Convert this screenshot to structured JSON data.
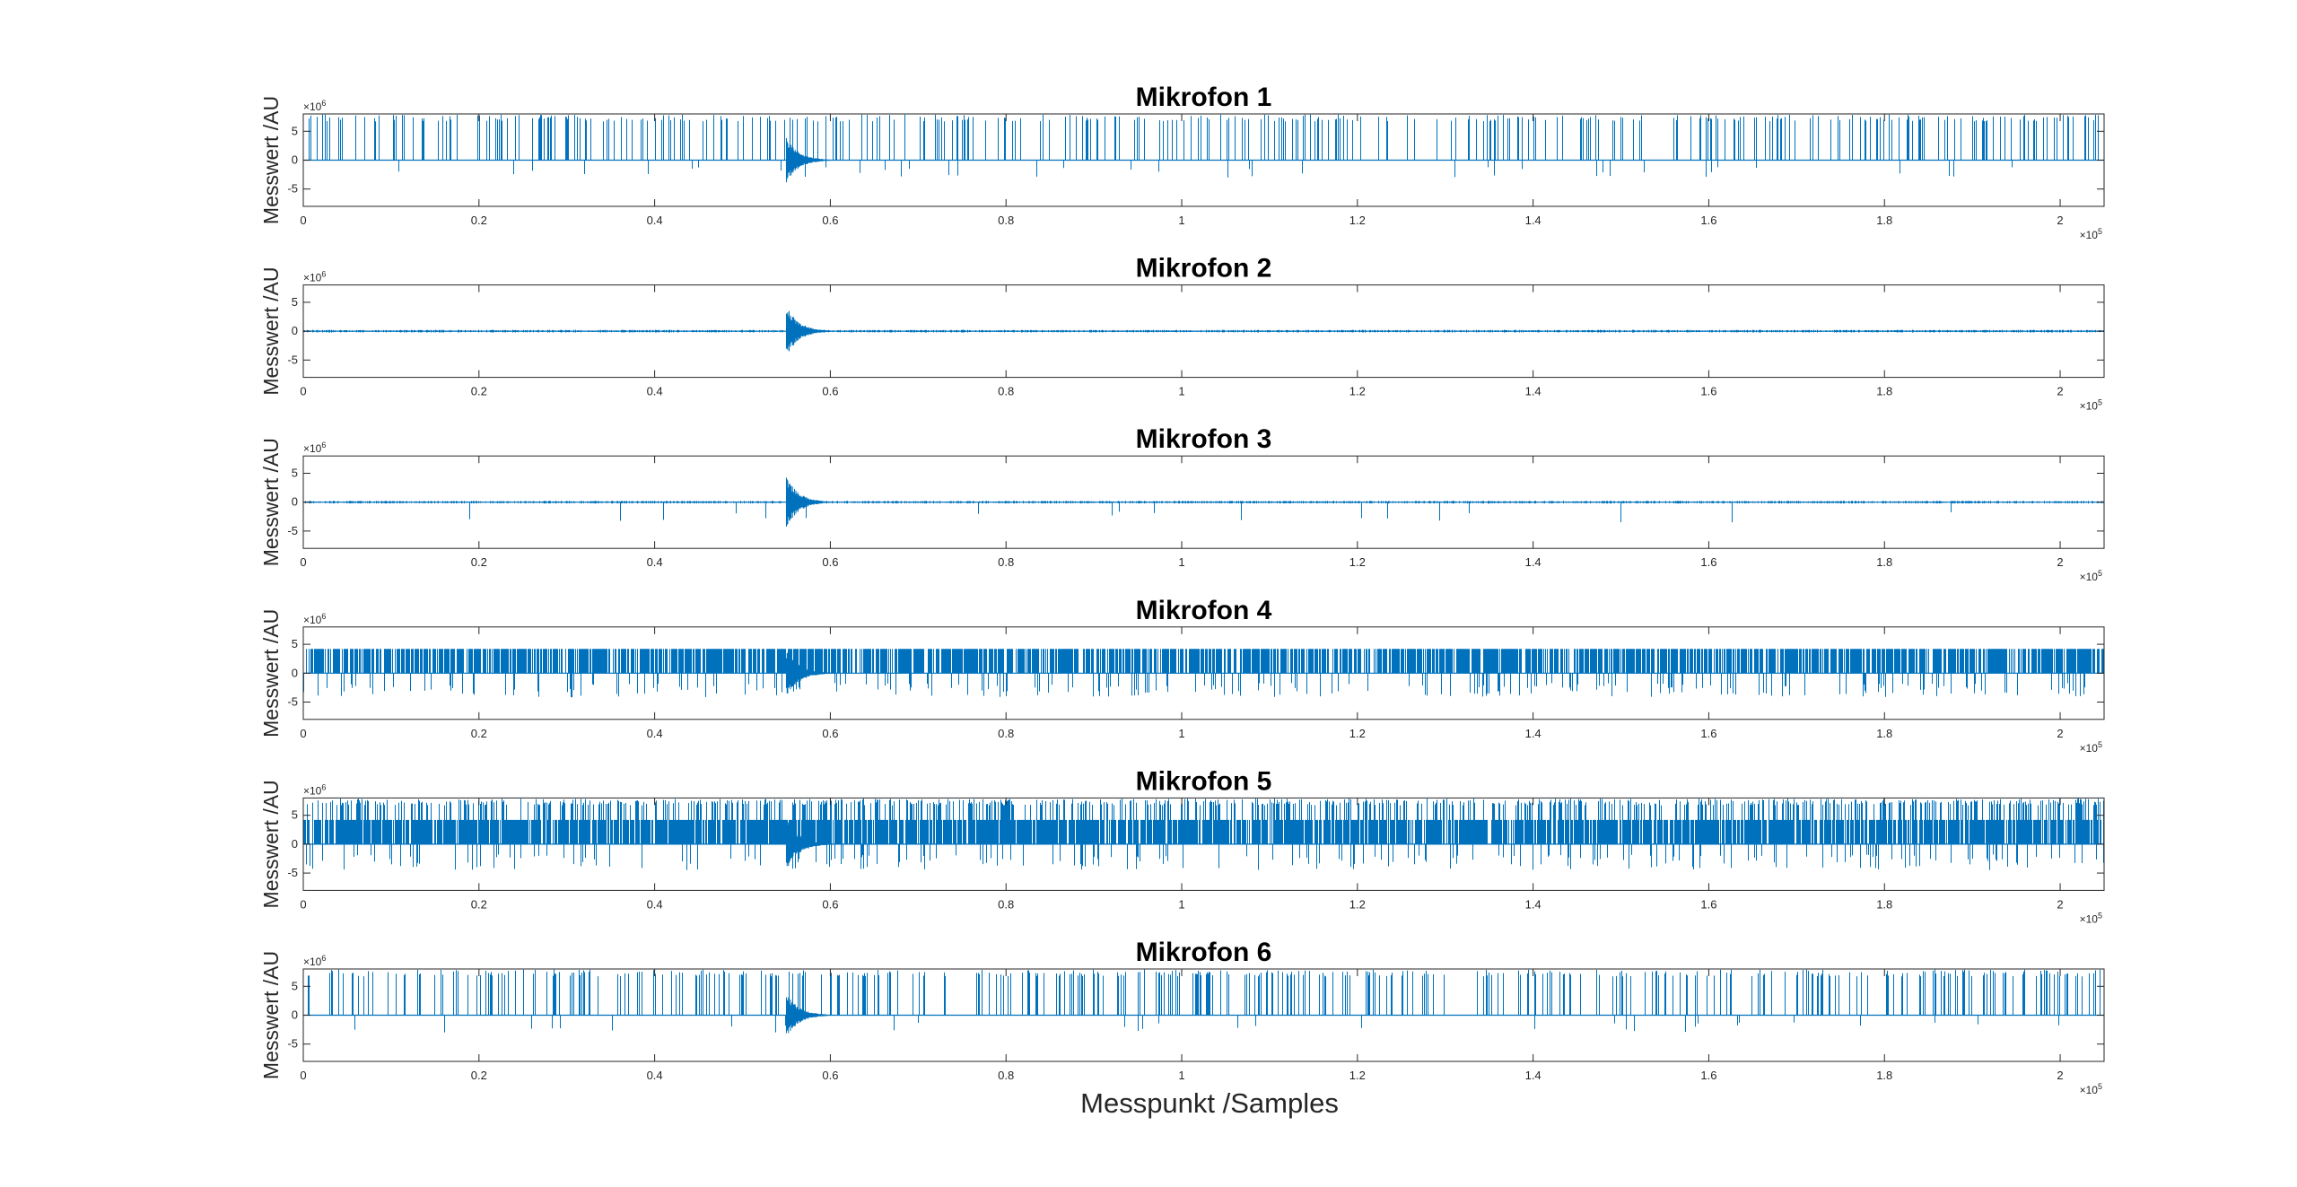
{
  "chart_data": {
    "type": "line",
    "layout": "6 stacked subplots",
    "xlabel": "Messpunkt /Samples",
    "x_exponent_label": "×10",
    "x_exponent": "5",
    "y_exponent_label": "×10",
    "y_exponent": "6",
    "xlim": [
      0,
      205000
    ],
    "ylim": [
      -8000000,
      8000000
    ],
    "x_ticks": [
      0,
      20000,
      40000,
      60000,
      80000,
      100000,
      120000,
      140000,
      160000,
      180000,
      200000
    ],
    "x_tick_labels": [
      "0",
      "0.2",
      "0.4",
      "0.6",
      "0.8",
      "1",
      "1.2",
      "1.4",
      "1.6",
      "1.8",
      "2"
    ],
    "y_ticks": [
      -5000000,
      0,
      5000000
    ],
    "y_tick_labels": [
      "-5",
      "0",
      "5"
    ],
    "grid": false,
    "line_color": "#0072BD",
    "event_x": 55000,
    "panels": [
      {
        "title": "Mikrofon 1",
        "ylabel": "Messwert /AU",
        "pattern": "sparse-spikes",
        "spike_density": 0.18,
        "spike_high": 7900000,
        "neg_density": 0.02,
        "neg_low": -3000000,
        "burst": 4000000
      },
      {
        "title": "Mikrofon 2",
        "ylabel": "Messwert /AU",
        "pattern": "clean",
        "spike_density": 0.0,
        "spike_high": 0,
        "neg_density": 0.0,
        "neg_low": 0,
        "burst": 4500000
      },
      {
        "title": "Mikrofon 3",
        "ylabel": "Messwert /AU",
        "pattern": "rare-negative",
        "spike_density": 0.0,
        "spike_high": 0,
        "neg_density": 0.008,
        "neg_low": -4000000,
        "burst": 4500000
      },
      {
        "title": "Mikrofon 4",
        "ylabel": "Messwert /AU",
        "pattern": "dense-band",
        "spike_density": 0.0,
        "spike_high": 4200000,
        "neg_density": 0.12,
        "neg_low": -4200000,
        "burst": 4200000
      },
      {
        "title": "Mikrofon 5",
        "ylabel": "Messwert /AU",
        "pattern": "dense-band-spikes",
        "spike_density": 0.35,
        "spike_high": 7900000,
        "neg_density": 0.12,
        "neg_low": -4500000,
        "burst": 4500000
      },
      {
        "title": "Mikrofon 6",
        "ylabel": "Messwert /AU",
        "pattern": "sparse-spikes",
        "spike_density": 0.2,
        "spike_high": 7900000,
        "neg_density": 0.02,
        "neg_low": -3000000,
        "burst": 4000000
      }
    ]
  }
}
